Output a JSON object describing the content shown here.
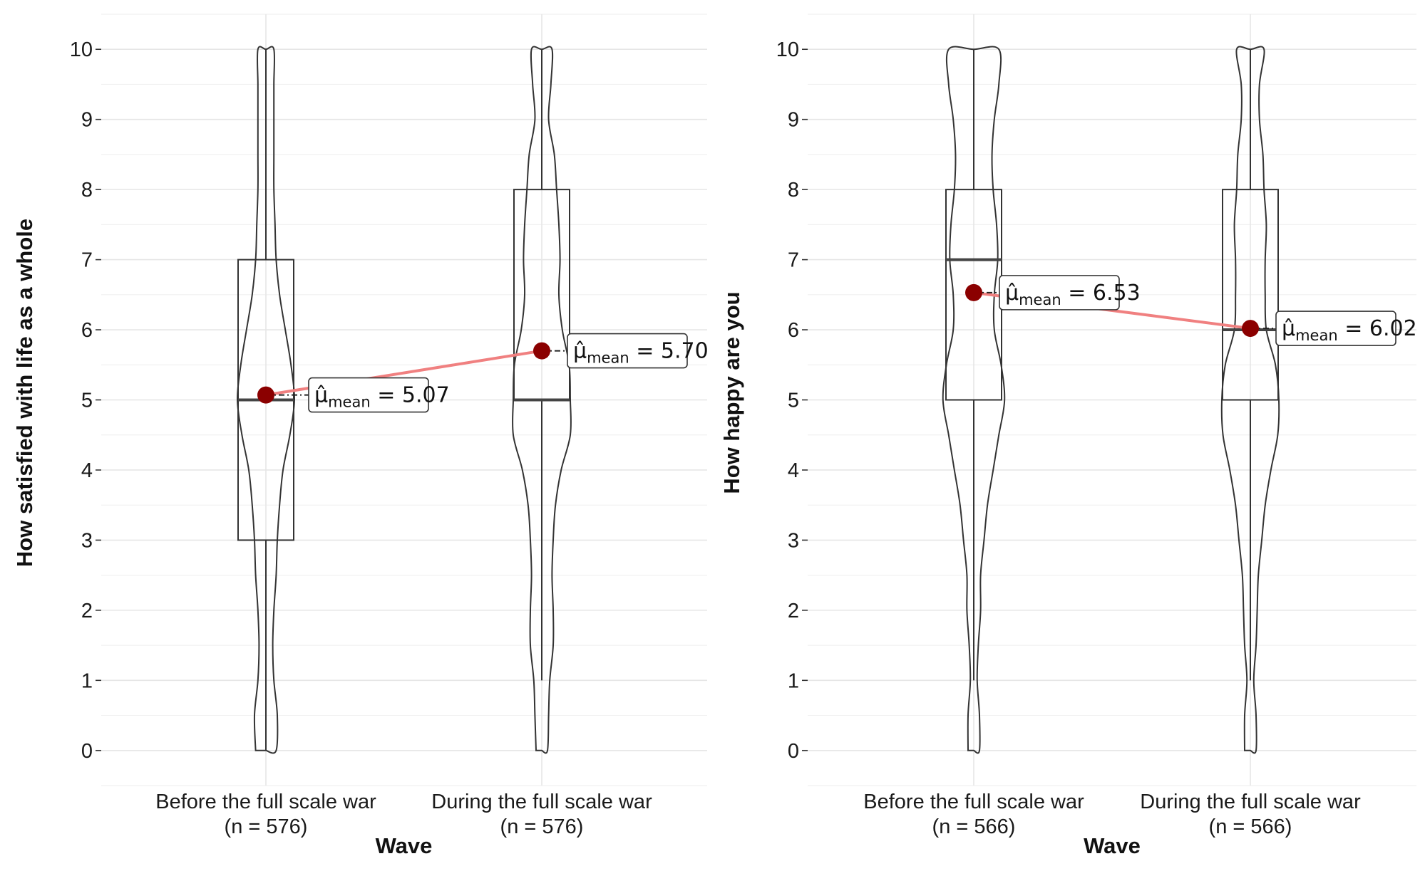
{
  "chart_data": [
    {
      "type": "violin",
      "xlabel": "Wave",
      "ylabel": "How satisfied with life as a whole",
      "ylim": [
        -0.5,
        10.5
      ],
      "yticks": [
        0,
        1,
        2,
        3,
        4,
        5,
        6,
        7,
        8,
        9,
        10
      ],
      "grid": true,
      "categories": [
        {
          "label": "Before the full scale war",
          "n_label": "(n = 576)"
        },
        {
          "label": "During the full scale war",
          "n_label": "(n = 576)"
        }
      ],
      "box": [
        {
          "min": 0,
          "q1": 3,
          "median": 5,
          "q3": 7,
          "max": 10
        },
        {
          "min": 1,
          "q1": 5,
          "median": 5,
          "q3": 8,
          "max": 10
        }
      ],
      "violin_halfwidth_by_y": [
        [
          [
            0,
            0.09
          ],
          [
            0.5,
            0.1
          ],
          [
            1,
            0.07
          ],
          [
            1.5,
            0.06
          ],
          [
            2,
            0.07
          ],
          [
            2.5,
            0.09
          ],
          [
            3,
            0.1
          ],
          [
            3.5,
            0.12
          ],
          [
            4,
            0.15
          ],
          [
            4.5,
            0.21
          ],
          [
            5,
            0.25
          ],
          [
            5.5,
            0.22
          ],
          [
            6,
            0.17
          ],
          [
            6.5,
            0.12
          ],
          [
            7,
            0.09
          ],
          [
            7.5,
            0.08
          ],
          [
            8,
            0.07
          ],
          [
            8.5,
            0.07
          ],
          [
            9,
            0.07
          ],
          [
            9.5,
            0.07
          ],
          [
            10,
            0.07
          ]
        ],
        [
          [
            0,
            0.05
          ],
          [
            0.5,
            0.06
          ],
          [
            1,
            0.07
          ],
          [
            1.5,
            0.1
          ],
          [
            2,
            0.1
          ],
          [
            2.5,
            0.09
          ],
          [
            3,
            0.1
          ],
          [
            3.5,
            0.12
          ],
          [
            4,
            0.17
          ],
          [
            4.5,
            0.25
          ],
          [
            5,
            0.25
          ],
          [
            5.5,
            0.24
          ],
          [
            6,
            0.18
          ],
          [
            6.5,
            0.15
          ],
          [
            7,
            0.16
          ],
          [
            7.5,
            0.15
          ],
          [
            8,
            0.13
          ],
          [
            8.5,
            0.11
          ],
          [
            9,
            0.06
          ],
          [
            9.5,
            0.08
          ],
          [
            10,
            0.09
          ]
        ]
      ],
      "means": [
        5.07,
        5.7
      ],
      "mean_labels": [
        {
          "symbol": "μ̂",
          "sub": "mean",
          "eq": " = 5.07"
        },
        {
          "symbol": "μ̂",
          "sub": "mean",
          "eq": " = 5.70"
        }
      ],
      "colors": {
        "mean_point": "#8b0000",
        "mean_line": "#f08080"
      }
    },
    {
      "type": "violin",
      "xlabel": "Wave",
      "ylabel": "How happy are you",
      "ylim": [
        -0.5,
        10.5
      ],
      "yticks": [
        0,
        1,
        2,
        3,
        4,
        5,
        6,
        7,
        8,
        9,
        10
      ],
      "grid": true,
      "categories": [
        {
          "label": "Before the full scale war",
          "n_label": "(n = 566)"
        },
        {
          "label": "During the full scale war",
          "n_label": "(n = 566)"
        }
      ],
      "box": [
        {
          "min": 1,
          "q1": 5,
          "median": 7,
          "q3": 8,
          "max": 10
        },
        {
          "min": 1,
          "q1": 5,
          "median": 6,
          "q3": 8,
          "max": 10
        }
      ],
      "violin_halfwidth_by_y": [
        [
          [
            0,
            0.05
          ],
          [
            0.5,
            0.05
          ],
          [
            1,
            0.03
          ],
          [
            1.5,
            0.04
          ],
          [
            2,
            0.06
          ],
          [
            2.5,
            0.06
          ],
          [
            3,
            0.09
          ],
          [
            3.5,
            0.12
          ],
          [
            4,
            0.17
          ],
          [
            4.5,
            0.22
          ],
          [
            5,
            0.27
          ],
          [
            5.5,
            0.24
          ],
          [
            6,
            0.18
          ],
          [
            6.5,
            0.18
          ],
          [
            7,
            0.21
          ],
          [
            7.5,
            0.2
          ],
          [
            8,
            0.17
          ],
          [
            8.5,
            0.16
          ],
          [
            9,
            0.18
          ],
          [
            9.5,
            0.22
          ],
          [
            10,
            0.22
          ]
        ],
        [
          [
            0,
            0.05
          ],
          [
            0.5,
            0.05
          ],
          [
            1,
            0.03
          ],
          [
            1.5,
            0.05
          ],
          [
            2,
            0.06
          ],
          [
            2.5,
            0.07
          ],
          [
            3,
            0.1
          ],
          [
            3.5,
            0.13
          ],
          [
            4,
            0.18
          ],
          [
            4.5,
            0.24
          ],
          [
            5,
            0.25
          ],
          [
            5.5,
            0.22
          ],
          [
            6,
            0.14
          ],
          [
            6.5,
            0.13
          ],
          [
            7,
            0.13
          ],
          [
            7.5,
            0.14
          ],
          [
            8,
            0.12
          ],
          [
            8.5,
            0.11
          ],
          [
            9,
            0.08
          ],
          [
            9.5,
            0.08
          ],
          [
            10,
            0.12
          ]
        ]
      ],
      "means": [
        6.53,
        6.02
      ],
      "mean_labels": [
        {
          "symbol": "μ̂",
          "sub": "mean",
          "eq": " = 6.53"
        },
        {
          "symbol": "μ̂",
          "sub": "mean",
          "eq": " = 6.02"
        }
      ],
      "colors": {
        "mean_point": "#8b0000",
        "mean_line": "#f08080"
      }
    }
  ]
}
